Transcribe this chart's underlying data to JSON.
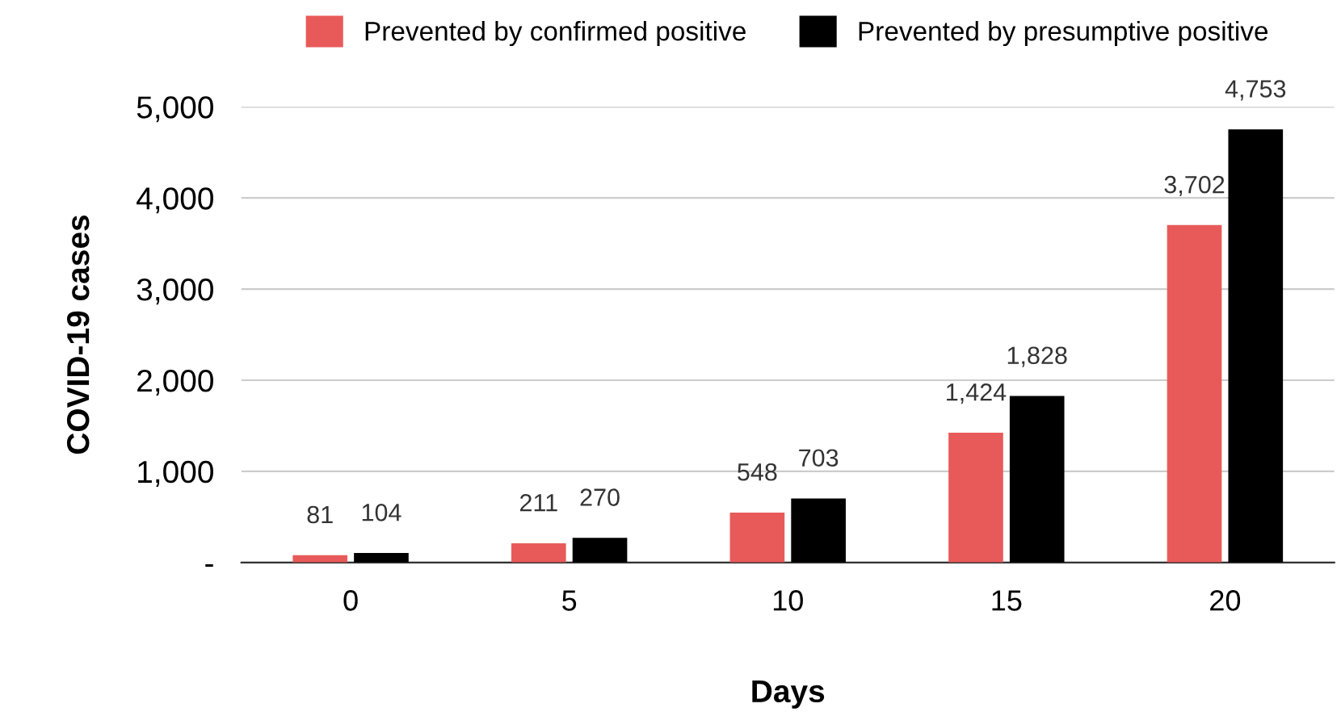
{
  "chart_data": {
    "type": "bar",
    "xlabel": "Days",
    "ylabel": "COVID-19 cases",
    "categories": [
      "0",
      "5",
      "10",
      "15",
      "20"
    ],
    "series": [
      {
        "name": "Prevented by confirmed positive",
        "color": "#e85a5a",
        "values": [
          81,
          211,
          548,
          1424,
          3702
        ],
        "value_labels": [
          "81",
          "211",
          "548",
          "1,424",
          "3,702"
        ]
      },
      {
        "name": "Prevented by presumptive positive",
        "color": "#000000",
        "values": [
          104,
          270,
          703,
          1828,
          4753
        ],
        "value_labels": [
          "104",
          "270",
          "703",
          "1,828",
          "4,753"
        ]
      }
    ],
    "ylim": [
      0,
      5000
    ],
    "yticks": [
      {
        "value": 0,
        "label": "-"
      },
      {
        "value": 1000,
        "label": "1,000"
      },
      {
        "value": 2000,
        "label": "2,000"
      },
      {
        "value": 3000,
        "label": "3,000"
      },
      {
        "value": 4000,
        "label": "4,000"
      },
      {
        "value": 5000,
        "label": "5,000"
      }
    ],
    "grid": "y",
    "legend": "top"
  }
}
